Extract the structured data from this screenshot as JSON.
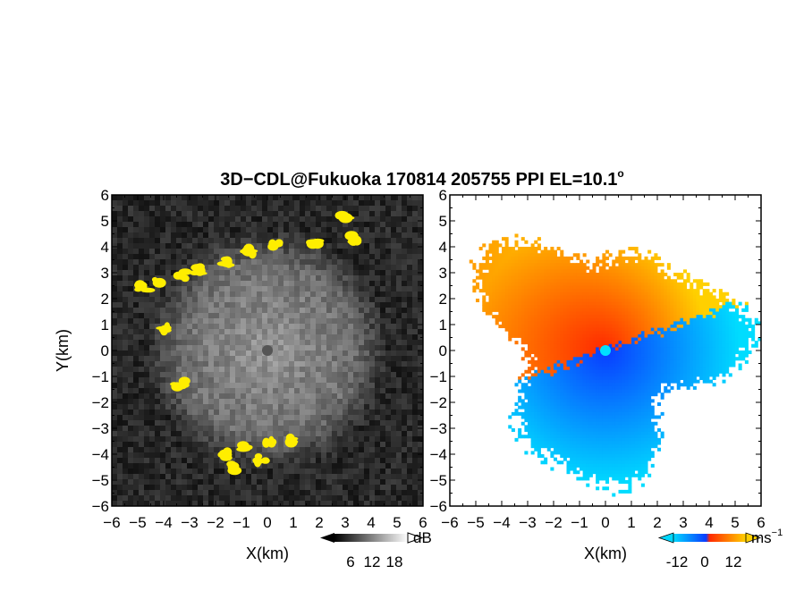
{
  "figure": {
    "title_main": "3D−CDL@Fukuoka 170814 205755 PPI EL=10.1",
    "title_degree": "o"
  },
  "chart_data": [
    {
      "type": "heatmap",
      "name": "reflectivity-ppi",
      "xlabel": "X(km)",
      "ylabel": "Y(km)",
      "xlim": [
        -6,
        6
      ],
      "ylim": [
        -6,
        6
      ],
      "xticks": [
        -6,
        -5,
        -4,
        -3,
        -2,
        -1,
        0,
        1,
        2,
        3,
        4,
        5,
        6
      ],
      "yticks": [
        -6,
        -5,
        -4,
        -3,
        -2,
        -1,
        0,
        1,
        2,
        3,
        4,
        5,
        6
      ],
      "colormap": "grayscale with yellow overlay",
      "colorbar": {
        "ticks": [
          6,
          12,
          18
        ],
        "unit": "dB",
        "lo_color": "#000000",
        "hi_color": "#ffffff"
      },
      "highlight_color": "#ffee00",
      "highlight_patches": [
        {
          "x": -4.8,
          "y": 2.4
        },
        {
          "x": -4.3,
          "y": 2.6
        },
        {
          "x": -3.3,
          "y": 2.9
        },
        {
          "x": -2.6,
          "y": 3.1
        },
        {
          "x": -1.5,
          "y": 3.4
        },
        {
          "x": -0.6,
          "y": 3.8
        },
        {
          "x": 0.3,
          "y": 4.1
        },
        {
          "x": 1.8,
          "y": 4.1
        },
        {
          "x": 3.0,
          "y": 5.1
        },
        {
          "x": 3.4,
          "y": 4.3
        },
        {
          "x": -4.0,
          "y": 0.8
        },
        {
          "x": -3.4,
          "y": -1.3
        },
        {
          "x": -1.6,
          "y": -4.0
        },
        {
          "x": -0.8,
          "y": -3.7
        },
        {
          "x": 0.0,
          "y": -3.5
        },
        {
          "x": 0.9,
          "y": -3.5
        },
        {
          "x": -1.4,
          "y": -4.5
        },
        {
          "x": -0.2,
          "y": -4.2
        }
      ]
    },
    {
      "type": "heatmap",
      "name": "doppler-velocity-ppi",
      "xlabel": "X(km)",
      "xlim": [
        -6,
        6
      ],
      "ylim": [
        -6,
        6
      ],
      "xticks": [
        -6,
        -5,
        -4,
        -3,
        -2,
        -1,
        0,
        1,
        2,
        3,
        4,
        5,
        6
      ],
      "yticks": [
        -6,
        -5,
        -4,
        -3,
        -2,
        -1,
        0,
        1,
        2,
        3,
        4,
        5,
        6
      ],
      "colormap": "blue-cyan (negative) / red-orange-yellow (positive)",
      "colorbar": {
        "ticks": [
          -12,
          0,
          12
        ],
        "unit": "ms",
        "unit_exponent": "−1",
        "lo_color": "#00c8ff",
        "hi_color": "#ffd500"
      },
      "neg_colors": [
        "#0a3cff",
        "#00dcff"
      ],
      "pos_colors": [
        "#ff2a00",
        "#ffd000"
      ],
      "radar_marker_color": "#00e0ff"
    }
  ]
}
